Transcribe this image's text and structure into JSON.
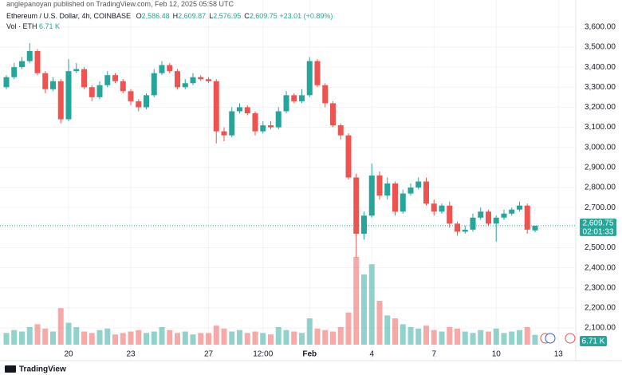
{
  "header": {
    "publisher": "anglepanoyan published on TradingView.com, Feb 12, 2025 05:58 UTC",
    "symbol": "Ethereum / U.S. Dollar, 4h, COINBASE",
    "ohlc": [
      {
        "key": "O",
        "value": "2,586.48"
      },
      {
        "key": "H",
        "value": "2,609.87"
      },
      {
        "key": "L",
        "value": "2,576.95"
      },
      {
        "key": "C",
        "value": "2,609.75"
      }
    ],
    "change": "+23.01 (+0.89%)",
    "vol_title": "Vol · ETH",
    "vol_value": "6.71 K",
    "logo": "TradingView"
  },
  "chart_data": {
    "type": "candlestick",
    "categories": [
      null,
      null,
      null,
      null,
      null,
      null,
      null,
      null,
      "20",
      null,
      null,
      null,
      null,
      null,
      null,
      null,
      "23",
      null,
      null,
      null,
      null,
      null,
      null,
      null,
      null,
      null,
      "27",
      null,
      null,
      null,
      null,
      null,
      null,
      "12:00",
      null,
      null,
      null,
      null,
      null,
      "Feb",
      null,
      null,
      null,
      null,
      null,
      null,
      null,
      "4",
      null,
      null,
      null,
      null,
      null,
      null,
      null,
      "7",
      null,
      null,
      null,
      null,
      null,
      null,
      null,
      "10",
      null,
      null,
      null,
      null,
      null,
      null,
      null,
      "13"
    ],
    "open": [
      3300,
      3350,
      3400,
      3430,
      3480,
      3370,
      3290,
      3330,
      3140,
      3380,
      3390,
      3300,
      3250,
      3310,
      3360,
      3330,
      3280,
      3230,
      3200,
      3260,
      3370,
      3410,
      3380,
      3300,
      3320,
      3350,
      3340,
      3330,
      3080,
      3060,
      3180,
      3200,
      3170,
      3080,
      3110,
      3100,
      3180,
      3260,
      3230,
      3260,
      3430,
      3310,
      3220,
      3110,
      3060,
      2850,
      2570,
      2660,
      2860,
      2760,
      2820,
      2680,
      2770,
      2800,
      2830,
      2720,
      2680,
      2710,
      2620,
      2580,
      2590,
      2650,
      2680,
      2620,
      2650,
      2670,
      2690,
      2710,
      2586.48,
      null,
      null,
      null
    ],
    "high": [
      3360,
      3420,
      3450,
      3520,
      3490,
      3380,
      3350,
      3340,
      3440,
      3420,
      3400,
      3310,
      3330,
      3380,
      3370,
      3340,
      3290,
      3240,
      3270,
      3390,
      3430,
      3420,
      3390,
      3340,
      3370,
      3360,
      3350,
      3340,
      3100,
      3200,
      3220,
      3210,
      3180,
      3130,
      3130,
      3200,
      3280,
      3270,
      3290,
      3450,
      3440,
      3320,
      3230,
      3120,
      3070,
      2870,
      2680,
      2920,
      2880,
      2850,
      2830,
      2790,
      2820,
      2850,
      2850,
      2740,
      2720,
      2730,
      2630,
      2610,
      2670,
      2700,
      2690,
      2660,
      2690,
      2700,
      2730,
      2720,
      2609.87,
      null,
      null,
      null
    ],
    "low": [
      3290,
      3340,
      3390,
      3420,
      3360,
      3270,
      3280,
      3120,
      3130,
      3370,
      3290,
      3230,
      3240,
      3300,
      3320,
      3270,
      3210,
      3180,
      3190,
      3250,
      3360,
      3370,
      3290,
      3290,
      3310,
      3330,
      3320,
      3020,
      3030,
      3050,
      3170,
      3160,
      3060,
      3070,
      3090,
      3090,
      3170,
      3220,
      3220,
      3250,
      3300,
      3200,
      3100,
      3040,
      2840,
      2450,
      2540,
      2650,
      2740,
      2740,
      2660,
      2670,
      2760,
      2790,
      2710,
      2660,
      2670,
      2600,
      2560,
      2570,
      2580,
      2640,
      2610,
      2530,
      2640,
      2660,
      2680,
      2570,
      2576.95,
      null,
      null,
      null
    ],
    "close": [
      3350,
      3400,
      3430,
      3480,
      3370,
      3290,
      3330,
      3140,
      3380,
      3390,
      3300,
      3250,
      3310,
      3360,
      3330,
      3280,
      3230,
      3200,
      3260,
      3370,
      3410,
      3380,
      3300,
      3320,
      3350,
      3340,
      3330,
      3080,
      3060,
      3180,
      3200,
      3170,
      3080,
      3110,
      3100,
      3180,
      3260,
      3230,
      3260,
      3430,
      3310,
      3220,
      3110,
      3060,
      2850,
      2570,
      2660,
      2860,
      2760,
      2820,
      2680,
      2770,
      2800,
      2830,
      2720,
      2680,
      2710,
      2620,
      2580,
      2590,
      2650,
      2680,
      2620,
      2650,
      2670,
      2690,
      2710,
      2590,
      2609.75,
      null,
      null,
      null
    ],
    "volume": [
      8,
      10,
      9,
      12,
      14,
      11,
      9,
      25,
      15,
      12,
      9,
      8,
      10,
      11,
      7,
      8,
      9,
      10,
      8,
      9,
      12,
      10,
      8,
      9,
      7,
      8,
      8,
      13,
      11,
      9,
      10,
      8,
      9,
      8,
      7,
      12,
      10,
      9,
      8,
      18,
      11,
      10,
      9,
      12,
      22,
      60,
      48,
      55,
      30,
      20,
      18,
      14,
      12,
      11,
      13,
      10,
      9,
      12,
      11,
      9,
      8,
      10,
      9,
      11,
      8,
      9,
      10,
      12,
      6.71,
      null,
      null,
      null
    ],
    "up_color": "#26a69a",
    "down_color": "#ef5350",
    "ylim": [
      1985,
      3655
    ],
    "yticks": [
      {
        "value": 2100,
        "label": "2,100.00"
      },
      {
        "value": 2200,
        "label": "2,200.00"
      },
      {
        "value": 2300,
        "label": "2,300.00"
      },
      {
        "value": 2400,
        "label": "2,400.00"
      },
      {
        "value": 2500,
        "label": "2,500.00"
      },
      {
        "value": 2600,
        "label": "2,600.00"
      },
      {
        "value": 2700,
        "label": "2,700.00"
      },
      {
        "value": 2800,
        "label": "2,800.00"
      },
      {
        "value": 2900,
        "label": "2,900.00"
      },
      {
        "value": 3000,
        "label": "3,000.00"
      },
      {
        "value": 3100,
        "label": "3,100.00"
      },
      {
        "value": 3200,
        "label": "3,200.00"
      },
      {
        "value": 3300,
        "label": "3,300.00"
      },
      {
        "value": 3400,
        "label": "3,400.00"
      },
      {
        "value": 3500,
        "label": "3,500.00"
      },
      {
        "value": 3600,
        "label": "3,600.00"
      }
    ],
    "last_price": {
      "value": 2609.75,
      "label": "2,609.75"
    },
    "countdown": "02:01:33",
    "grid": true
  }
}
